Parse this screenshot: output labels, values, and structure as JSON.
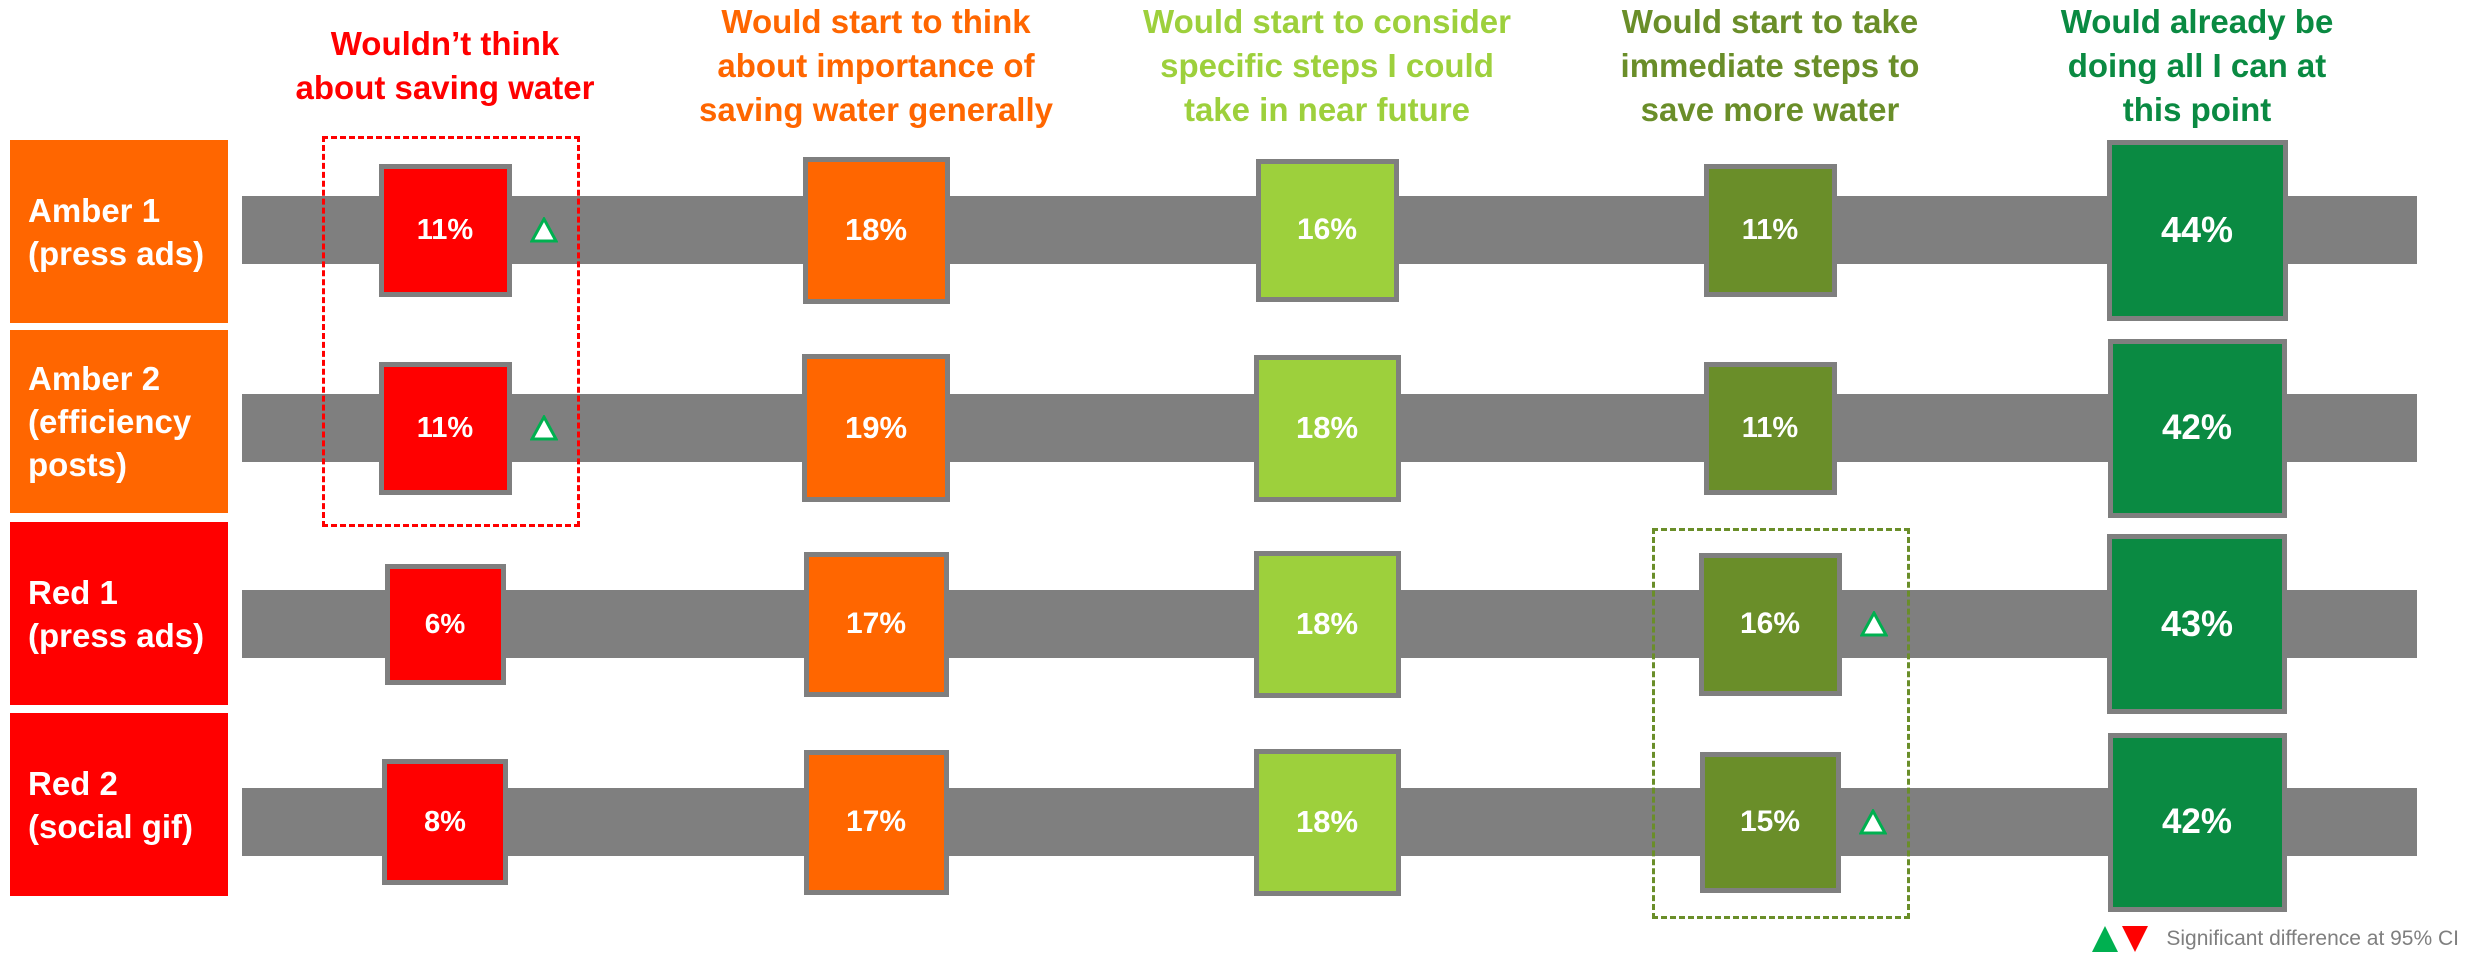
{
  "chart_data": {
    "type": "table",
    "columns": [
      {
        "label": "Wouldn’t think about saving water",
        "color": "#ff0000"
      },
      {
        "label": "Would start to think about importance of saving water generally",
        "color": "#ff6600"
      },
      {
        "label": "Would start to consider specific steps I could take in near future",
        "color": "#9dd03c"
      },
      {
        "label": "Would start to take immediate steps to save more water",
        "color": "#6a8e29"
      },
      {
        "label": "Would already be doing all I can at this point",
        "color": "#0a8a42"
      }
    ],
    "rows": [
      {
        "label": "Amber 1 (press ads)",
        "label_lines": [
          "Amber 1",
          "(press ads)"
        ],
        "color": "#ff6600",
        "values": [
          11,
          18,
          16,
          11,
          44
        ],
        "value_labels": [
          "11%",
          "18%",
          "16%",
          "11%",
          "44%"
        ],
        "significant_up": [
          true,
          false,
          false,
          false,
          false
        ]
      },
      {
        "label": "Amber 2 (efficiency posts)",
        "label_lines": [
          "Amber 2",
          "(efficiency",
          "posts)"
        ],
        "color": "#ff6600",
        "values": [
          11,
          19,
          18,
          11,
          42
        ],
        "value_labels": [
          "11%",
          "19%",
          "18%",
          "11%",
          "42%"
        ],
        "significant_up": [
          true,
          false,
          false,
          false,
          false
        ]
      },
      {
        "label": "Red 1 (press ads)",
        "label_lines": [
          "Red 1",
          "(press ads)"
        ],
        "color": "#ff0000",
        "values": [
          6,
          17,
          18,
          16,
          43
        ],
        "value_labels": [
          "6%",
          "17%",
          "18%",
          "16%",
          "43%"
        ],
        "significant_up": [
          false,
          false,
          false,
          true,
          false
        ]
      },
      {
        "label": "Red 2 (social gif)",
        "label_lines": [
          "Red 2",
          "(social gif)"
        ],
        "color": "#ff0000",
        "values": [
          8,
          17,
          18,
          15,
          42
        ],
        "value_labels": [
          "8%",
          "17%",
          "18%",
          "15%",
          "42%"
        ],
        "significant_up": [
          false,
          false,
          false,
          true,
          false
        ]
      }
    ],
    "highlight_groups": [
      {
        "column": 0,
        "rows": [
          0,
          1
        ],
        "color": "#ff0000"
      },
      {
        "column": 3,
        "rows": [
          2,
          3
        ],
        "color": "#6a8e29"
      }
    ],
    "legend": {
      "text": "Significant difference at 95% CI",
      "up_color": "#00b050",
      "down_color": "#ff0000"
    }
  }
}
